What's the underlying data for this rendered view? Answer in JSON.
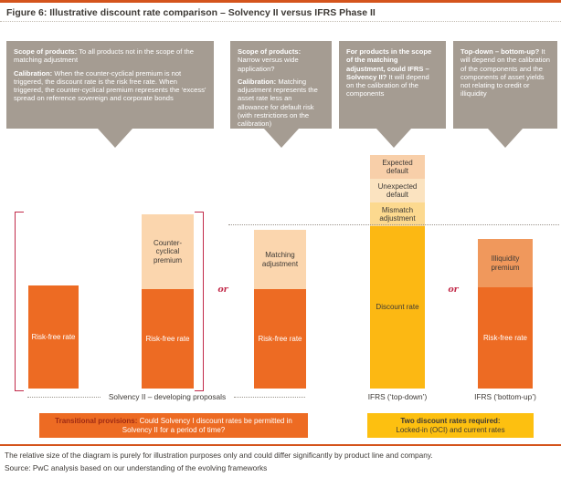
{
  "title": "Figure 6: Illustrative discount rate comparison – Solvency II versus IFRS Phase II",
  "callouts": [
    {
      "p1_bold": "Scope of products:",
      "p1_text": " To all products not in the scope of the matching adjustment",
      "p2_bold": "Calibration:",
      "p2_text": " When the counter-cyclical premium is not triggered, the discount rate is the risk free rate. When triggered, the counter-cyclical premium represents the ‘excess’ spread on reference sovereign and corporate bonds"
    },
    {
      "p1_bold": "Scope of products:",
      "p1_text": " Narrow versus wide application?",
      "p2_bold": "Calibration:",
      "p2_text": " Matching adjustment represents the asset rate less an allowance for default risk (with restrictions on the calibration)"
    },
    {
      "p1_bold": "For products in the scope of the matching adjustment, could IFRS – Solvency II?",
      "p1_text": " It will depend on the calibration of the components"
    },
    {
      "p1_bold": "Top-down – bottom-up?",
      "p1_text": " It will depend on the calibration of the components and the components of asset yields not relating to credit or illiquidity"
    }
  ],
  "or_label": "or",
  "axis": {
    "solvency_label": "Solvency II – developing proposals",
    "ifrs_topdown_label": "IFRS (‘top-down’)",
    "ifrs_bottomup_label": "IFRS (‘bottom-up’)"
  },
  "notes": {
    "transitional_bold": "Transitional provisions:",
    "transitional_text": " Could Solvency I discount rates be permitted in Solvency II for a period of time?",
    "two_rates_bold": "Two discount rates required:",
    "two_rates_text": "Locked-in (OCI) and current rates"
  },
  "footer": {
    "note": "The relative size of the diagram is purely for illustration purposes only and could differ significantly by product line and company.",
    "source": "Source: PwC analysis based on our understanding of the evolving frameworks"
  },
  "colors": {
    "orange": "#ed6b23",
    "peach": "#fbd6ae",
    "salmon": "#f0985c",
    "gold": "#fcb813",
    "gold_pale": "#fcd98f",
    "peach_pale": "#fbe3c0",
    "peach_dark": "#f8cfa9",
    "taupe_callout": "#a59c92",
    "crimson_accent": "#c22b4a",
    "rule_orange": "#d4541c",
    "note_yellow": "#fdc010",
    "dark_red_label": "#9e2a13",
    "text_charcoal": "#3d3935"
  },
  "chart_data": {
    "type": "bar",
    "subtype": "stacked",
    "title": "Illustrative discount rate comparison – Solvency II versus IFRS Phase II",
    "value_note": "illustrative relative heights (no numeric axis shown); values estimated in pixels",
    "legend_position": "none",
    "grid": false,
    "bars": [
      {
        "group": "Solvency II – developing proposals",
        "segments": [
          {
            "label": "Risk-free rate",
            "value": 113,
            "color": "orange"
          }
        ]
      },
      {
        "group": "Solvency II – developing proposals",
        "segments": [
          {
            "label": "Counter-cyclical premium",
            "value": 82,
            "color": "peach"
          },
          {
            "label": "Risk-free rate",
            "value": 109,
            "color": "orange"
          }
        ]
      },
      {
        "group": "Solvency II – developing proposals",
        "segments": [
          {
            "label": "Matching adjustment",
            "value": 65,
            "color": "peach"
          },
          {
            "label": "Risk-free rate",
            "value": 109,
            "color": "orange"
          }
        ]
      },
      {
        "group": "IFRS (‘top-down’)",
        "segments": [
          {
            "label": "Expected default",
            "value": 26,
            "color": "peach_dark"
          },
          {
            "label": "Unexpected default",
            "value": 26,
            "color": "peach_pale"
          },
          {
            "label": "Mismatch adjustment",
            "value": 26,
            "color": "gold_pale"
          },
          {
            "label": "Discount rate",
            "value": 178,
            "color": "gold"
          }
        ]
      },
      {
        "group": "IFRS (‘bottom-up’)",
        "segments": [
          {
            "label": "Illiquidity premium",
            "value": 53,
            "color": "salmon"
          },
          {
            "label": "Risk-free rate",
            "value": 111,
            "color": "orange"
          }
        ]
      }
    ]
  }
}
